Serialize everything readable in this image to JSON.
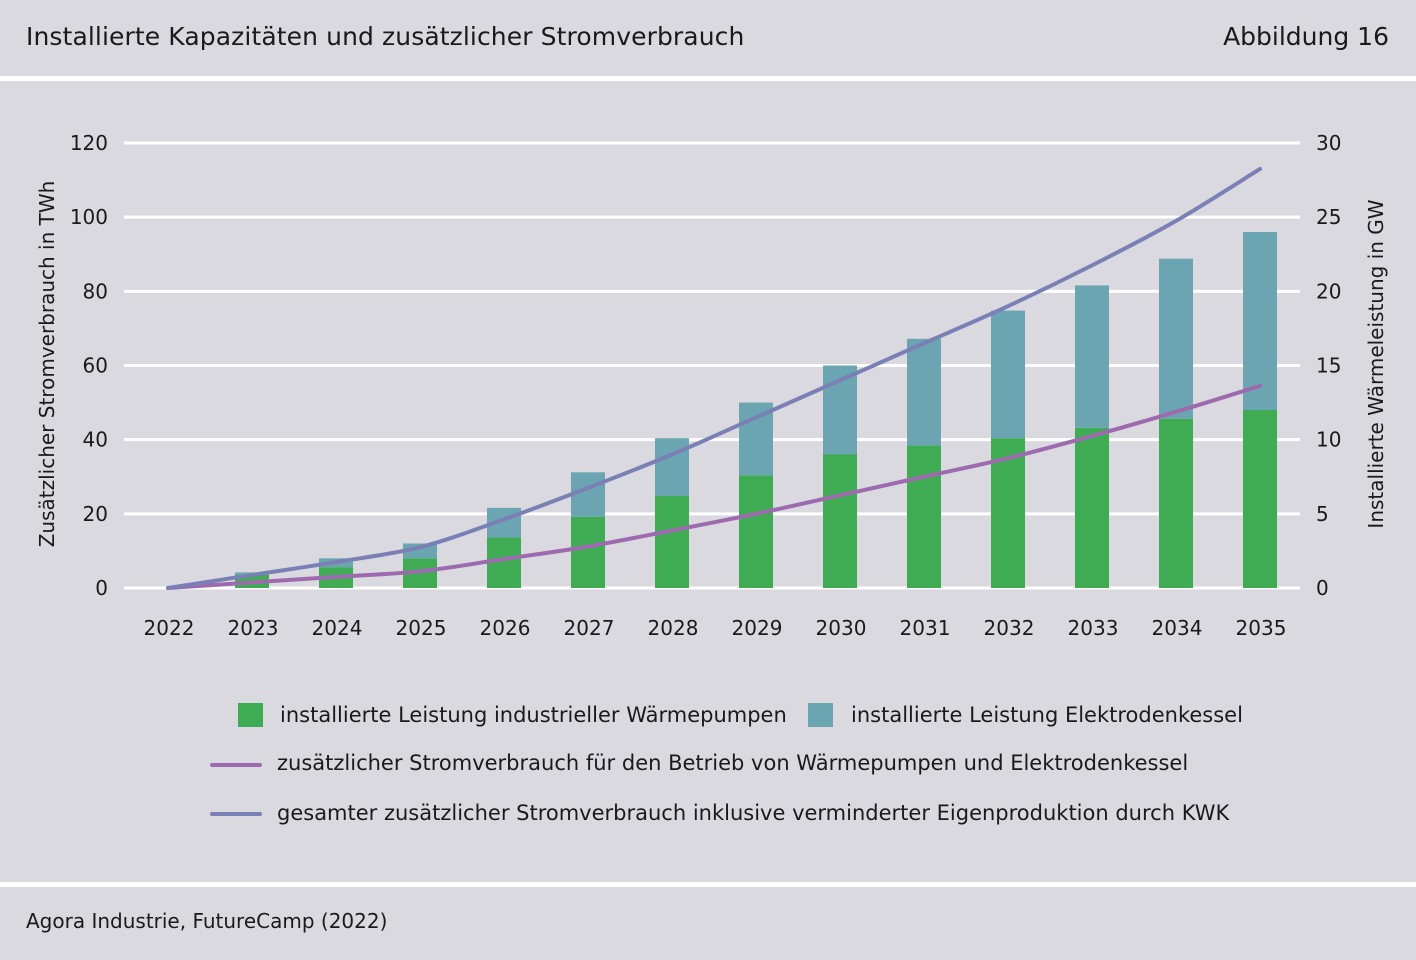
{
  "header": {
    "title": "Installierte Kapazitäten und zusätzlicher Stromverbrauch",
    "figure_number": "Abbildung 16"
  },
  "footer": {
    "source": "Agora Industrie, FutureCamp (2022)"
  },
  "chart_data": {
    "type": "bar",
    "categories": [
      "2022",
      "2023",
      "2024",
      "2025",
      "2026",
      "2027",
      "2028",
      "2029",
      "2030",
      "2031",
      "2032",
      "2033",
      "2034",
      "2035"
    ],
    "ylabel_left": "Zusätzlicher Stromverbrauch in TWh",
    "ylabel_right": "Installierte Wärmeleistung in GW",
    "ylim_left": [
      0,
      120
    ],
    "ylim_right": [
      0,
      30
    ],
    "yticks_left": [
      "0",
      "20",
      "40",
      "60",
      "80",
      "100",
      "120"
    ],
    "yticks_right": [
      "0",
      "5",
      "10",
      "15",
      "20",
      "25",
      "30"
    ],
    "grid": true,
    "legend_position": "bottom",
    "series": [
      {
        "name": "installierte Leistung industrieller Wärmepumpen",
        "kind": "bar",
        "axis": "right",
        "stack": "capacity",
        "color": "#3fab53",
        "values": [
          0,
          0.9,
          1.4,
          2.0,
          3.4,
          4.8,
          6.2,
          7.6,
          9.0,
          9.6,
          10.1,
          10.8,
          11.4,
          12.0
        ]
      },
      {
        "name": "installierte Leistung Elektrodenkessel",
        "kind": "bar",
        "axis": "right",
        "stack": "capacity",
        "color": "#6ba5b1",
        "values": [
          0,
          0.15,
          0.6,
          1.0,
          2.0,
          3.0,
          3.9,
          4.9,
          6.0,
          7.2,
          8.6,
          9.6,
          10.8,
          12.0
        ]
      },
      {
        "name": "zusätzlicher Stromverbrauch für den Betrieb von Wärmepumpen und Elektrodenkessel",
        "kind": "line",
        "axis": "left",
        "color": "#9d6aaf",
        "values": [
          0,
          1.5,
          3.0,
          4.5,
          7.8,
          11.2,
          15.5,
          20.0,
          25.0,
          30.0,
          35.0,
          41.0,
          47.5,
          54.5
        ]
      },
      {
        "name": "gesamter zusätzlicher Stromverbrauch inklusive verminderter Eigenproduktion durch KWK",
        "kind": "line",
        "axis": "left",
        "color": "#7a80b6",
        "values": [
          0,
          3.5,
          7.0,
          11.0,
          18.5,
          27.0,
          36.0,
          46.0,
          56.0,
          66.0,
          76.0,
          87.0,
          99.0,
          113.0
        ]
      }
    ]
  }
}
